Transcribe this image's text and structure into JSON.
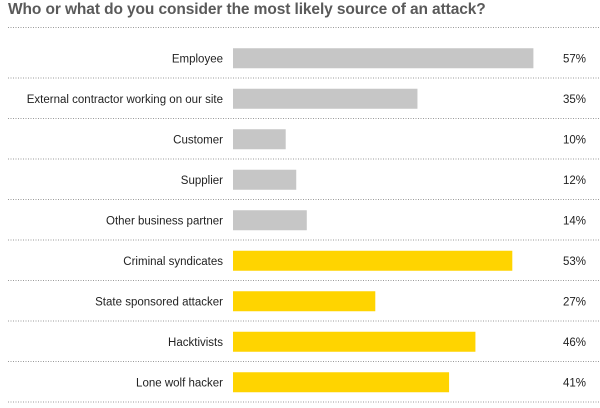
{
  "chart_data": {
    "type": "bar",
    "orientation": "horizontal",
    "title": "Who or what do you consider the most likely source of an attack?",
    "categories": [
      "Employee",
      "External contractor working on our site",
      "Customer",
      "Supplier",
      "Other business partner",
      "Criminal syndicates",
      "State sponsored attacker",
      "Hacktivists",
      "Lone wolf hacker"
    ],
    "values": [
      57,
      35,
      10,
      12,
      14,
      53,
      27,
      46,
      41
    ],
    "value_labels": [
      "57%",
      "35%",
      "10%",
      "12%",
      "14%",
      "53%",
      "27%",
      "46%",
      "41%"
    ],
    "bar_colors": [
      "#c6c6c6",
      "#c6c6c6",
      "#c6c6c6",
      "#c6c6c6",
      "#c6c6c6",
      "#ffd400",
      "#ffd400",
      "#ffd400",
      "#ffd400"
    ],
    "xlim": [
      0,
      100
    ],
    "grid": false,
    "xlabel": "",
    "ylabel": ""
  },
  "colors": {
    "title": "#5a5a5a",
    "gray_bar": "#c6c6c6",
    "yellow_bar": "#ffd400",
    "separator": "#9a9a9a"
  }
}
